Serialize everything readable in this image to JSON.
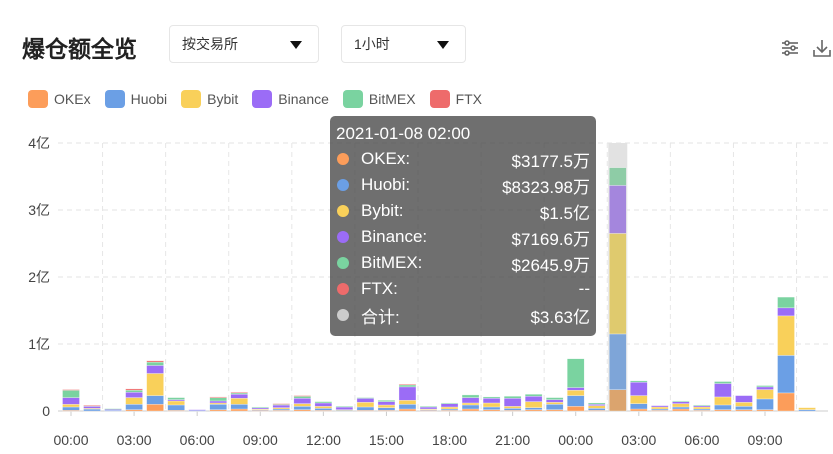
{
  "header": {
    "title": "爆仓额全览",
    "group_select": "按交易所",
    "interval_select": "1小时",
    "settings_icon": "sliders-icon",
    "download_icon": "download-icon"
  },
  "legend": [
    {
      "name": "OKEx",
      "color": "#fc9d5a"
    },
    {
      "name": "Huobi",
      "color": "#6b9fe5"
    },
    {
      "name": "Bybit",
      "color": "#f9d05a"
    },
    {
      "name": "Binance",
      "color": "#9b6cf6"
    },
    {
      "name": "BitMEX",
      "color": "#7ad3a0"
    },
    {
      "name": "FTX",
      "color": "#ee6b6b"
    }
  ],
  "tooltip": {
    "date": "2021-01-08 02:00",
    "rows": [
      {
        "name": "OKEx:",
        "value": "$3177.5万",
        "color": "#fc9d5a"
      },
      {
        "name": "Huobi:",
        "value": "$8323.98万",
        "color": "#6b9fe5"
      },
      {
        "name": "Bybit:",
        "value": "$1.5亿",
        "color": "#f9d05a"
      },
      {
        "name": "Binance:",
        "value": "$7169.6万",
        "color": "#9b6cf6"
      },
      {
        "name": "BitMEX:",
        "value": "$2645.9万",
        "color": "#7ad3a0"
      },
      {
        "name": "FTX:",
        "value": "--",
        "color": "#ee6b6b"
      },
      {
        "name": "合计:",
        "value": "$3.63亿",
        "color": "#cccccc"
      }
    ]
  },
  "chart_data": {
    "type": "bar",
    "stacked": true,
    "unit": "亿",
    "ylim": [
      0,
      4
    ],
    "y_ticks": [
      "0",
      "1亿",
      "2亿",
      "3亿",
      "4亿"
    ],
    "x_tick_labels": [
      "00:00",
      "03:00",
      "06:00",
      "09:00",
      "12:00",
      "15:00",
      "18:00",
      "21:00",
      "00:00",
      "03:00",
      "06:00",
      "09:00"
    ],
    "categories": [
      "00:00",
      "01:00",
      "02:00",
      "03:00",
      "04:00",
      "05:00",
      "06:00",
      "07:00",
      "08:00",
      "09:00",
      "10:00",
      "11:00",
      "12:00",
      "13:00",
      "14:00",
      "15:00",
      "16:00",
      "17:00",
      "18:00",
      "19:00",
      "20:00",
      "21:00",
      "22:00",
      "23:00",
      "00:00",
      "01:00",
      "02:00",
      "03:00",
      "04:00",
      "05:00",
      "06:00",
      "07:00",
      "08:00",
      "09:00",
      "10:00",
      "11:00"
    ],
    "highlighted_index": 26,
    "grid": true,
    "legend_position": "top-left",
    "series": [
      {
        "name": "OKEx",
        "values": [
          0.01,
          0,
          0,
          0.02,
          0.1,
          0.01,
          0,
          0.02,
          0.03,
          0.01,
          0.01,
          0.02,
          0.01,
          0,
          0.01,
          0.01,
          0.03,
          0.01,
          0.01,
          0.03,
          0.02,
          0.01,
          0.02,
          0.02,
          0.07,
          0.01,
          0.3178,
          0.03,
          0.01,
          0.03,
          0.01,
          0.02,
          0.02,
          0.02,
          0.27,
          0
        ]
      },
      {
        "name": "Huobi",
        "values": [
          0.05,
          0.03,
          0.01,
          0.08,
          0.13,
          0.08,
          0.01,
          0.08,
          0.07,
          0.01,
          0.02,
          0.05,
          0.03,
          0.01,
          0.05,
          0.04,
          0.07,
          0.01,
          0.02,
          0.06,
          0.04,
          0.03,
          0.03,
          0.08,
          0.16,
          0.03,
          0.8324,
          0.08,
          0.02,
          0.03,
          0.02,
          0.07,
          0.05,
          0.16,
          0.56,
          0.02
        ]
      },
      {
        "name": "Bybit",
        "values": [
          0.04,
          0.01,
          0,
          0.1,
          0.33,
          0.06,
          0,
          0.02,
          0.09,
          0.01,
          0.02,
          0.04,
          0.03,
          0.01,
          0.07,
          0.04,
          0.06,
          0.01,
          0.03,
          0.03,
          0.06,
          0.03,
          0.09,
          0.03,
          0.08,
          0.04,
          1.5,
          0.12,
          0.03,
          0.05,
          0.03,
          0.12,
          0.06,
          0.14,
          0.59,
          0.03
        ]
      },
      {
        "name": "Binance",
        "values": [
          0.1,
          0.03,
          0.02,
          0.08,
          0.12,
          0.02,
          0.01,
          0.03,
          0.06,
          0.02,
          0.04,
          0.08,
          0.05,
          0.04,
          0.06,
          0.05,
          0.2,
          0.03,
          0.05,
          0.08,
          0.07,
          0.12,
          0.08,
          0.04,
          0.04,
          0.02,
          0.717,
          0.2,
          0.02,
          0.03,
          0.02,
          0.2,
          0.1,
          0.04,
          0.12,
          0
        ]
      },
      {
        "name": "BitMEX",
        "values": [
          0.11,
          0.01,
          0.005,
          0.03,
          0.05,
          0.03,
          0,
          0.05,
          0.02,
          0.01,
          0.01,
          0.03,
          0.02,
          0.01,
          0.01,
          0.02,
          0.03,
          0.01,
          0.01,
          0.04,
          0.02,
          0.03,
          0.03,
          0.03,
          0.43,
          0.02,
          0.2646,
          0.02,
          0,
          0.01,
          0.01,
          0.03,
          0,
          0.02,
          0.16,
          0
        ]
      },
      {
        "name": "FTX",
        "values": [
          0.01,
          0.005,
          0,
          0.02,
          0.02,
          0,
          0,
          0.01,
          0.01,
          0,
          0.01,
          0.01,
          0,
          0,
          0,
          0,
          0.01,
          0,
          0,
          0,
          0,
          0,
          0,
          0,
          0,
          0,
          null,
          0,
          0,
          0,
          0,
          0,
          0,
          0,
          0,
          0
        ]
      }
    ]
  }
}
